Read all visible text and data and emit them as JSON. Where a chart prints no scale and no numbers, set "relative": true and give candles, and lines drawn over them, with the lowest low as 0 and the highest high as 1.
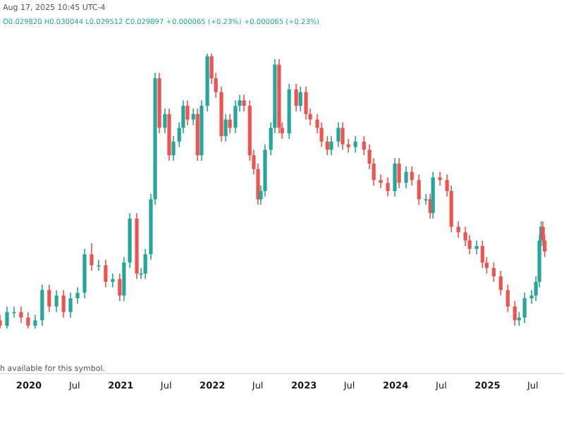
{
  "chart_data": {
    "type": "candlestick",
    "relative": true,
    "annotations": [
      "Aug 17, 2025 10:45 UTC-4",
      "O0.029820 H0.030044 L0.029512 C0.029897 +0.000065 (+0.23%) +0.000065 (+0.23%)",
      "h available for this symbol."
    ],
    "xlim": [
      "2019-09-08",
      "2025-11-02"
    ],
    "xticks": [
      {
        "value": "2020-01-01",
        "label": "2020"
      },
      {
        "value": "2020-07-01",
        "label": "Jul"
      },
      {
        "value": "2021-01-01",
        "label": "2021"
      },
      {
        "value": "2021-07-01",
        "label": "Jul"
      },
      {
        "value": "2022-01-01",
        "label": "2022"
      },
      {
        "value": "2022-07-01",
        "label": "Jul"
      },
      {
        "value": "2023-01-01",
        "label": "2023"
      },
      {
        "value": "2023-07-01",
        "label": "Jul"
      },
      {
        "value": "2024-01-01",
        "label": "2024"
      },
      {
        "value": "2024-07-01",
        "label": "Jul"
      },
      {
        "value": "2025-01-01",
        "label": "2025"
      },
      {
        "value": "2025-07-01",
        "label": "Jul"
      }
    ],
    "x": [
      "2019-09-08",
      "2019-10-06",
      "2019-11-03",
      "2019-12-01",
      "2019-12-29",
      "2020-01-26",
      "2020-02-23",
      "2020-03-22",
      "2020-04-20",
      "2020-05-18",
      "2020-06-15",
      "2020-07-13",
      "2020-08-10",
      "2020-09-07",
      "2020-10-05",
      "2020-11-02",
      "2020-11-30",
      "2020-12-28",
      "2021-01-14",
      "2021-02-06",
      "2021-03-06",
      "2021-03-23",
      "2021-04-09",
      "2021-05-01",
      "2021-05-18",
      "2021-06-04",
      "2021-06-26",
      "2021-07-13",
      "2021-07-30",
      "2021-08-22",
      "2021-09-07",
      "2021-09-24",
      "2021-10-17",
      "2021-11-03",
      "2021-11-19",
      "2021-12-12",
      "2021-12-29",
      "2022-01-15",
      "2022-02-06",
      "2022-02-23",
      "2022-03-12",
      "2022-04-03",
      "2022-04-20",
      "2022-05-07",
      "2022-05-30",
      "2022-06-15",
      "2022-07-02",
      "2022-07-13",
      "2022-07-30",
      "2022-08-22",
      "2022-09-07",
      "2022-09-24",
      "2022-10-06",
      "2022-11-03",
      "2022-12-01",
      "2022-12-18",
      "2023-01-09",
      "2023-01-26",
      "2023-02-23",
      "2023-03-12",
      "2023-04-04",
      "2023-04-20",
      "2023-05-18",
      "2023-06-04",
      "2023-06-27",
      "2023-07-25",
      "2023-08-28",
      "2023-09-19",
      "2023-10-06",
      "2023-11-03",
      "2023-12-01",
      "2023-12-29",
      "2024-01-15",
      "2024-02-12",
      "2024-03-06",
      "2024-04-03",
      "2024-05-01",
      "2024-05-18",
      "2024-05-29",
      "2024-06-26",
      "2024-07-24",
      "2024-08-10",
      "2024-09-07",
      "2024-10-05",
      "2024-10-22",
      "2024-11-19",
      "2024-12-12",
      "2024-12-29",
      "2025-01-26",
      "2025-02-23",
      "2025-03-23",
      "2025-04-20",
      "2025-05-07",
      "2025-05-29",
      "2025-06-26",
      "2025-07-13",
      "2025-07-27",
      "2025-08-03",
      "2025-08-10",
      "2025-08-17"
    ],
    "ohlc": [
      [
        0.03,
        0.05,
        0.0,
        0.01
      ],
      [
        0.01,
        0.08,
        0.0,
        0.06
      ],
      [
        0.06,
        0.08,
        0.04,
        0.06
      ],
      [
        0.06,
        0.08,
        0.02,
        0.04
      ],
      [
        0.04,
        0.06,
        0.0,
        0.01
      ],
      [
        0.01,
        0.05,
        0.0,
        0.03
      ],
      [
        0.03,
        0.16,
        0.01,
        0.14
      ],
      [
        0.14,
        0.16,
        0.06,
        0.08
      ],
      [
        0.08,
        0.14,
        0.06,
        0.12
      ],
      [
        0.12,
        0.14,
        0.04,
        0.06
      ],
      [
        0.06,
        0.13,
        0.04,
        0.11
      ],
      [
        0.11,
        0.15,
        0.09,
        0.13
      ],
      [
        0.13,
        0.29,
        0.11,
        0.27
      ],
      [
        0.27,
        0.31,
        0.21,
        0.23
      ],
      [
        0.23,
        0.25,
        0.21,
        0.23
      ],
      [
        0.23,
        0.25,
        0.15,
        0.17
      ],
      [
        0.17,
        0.2,
        0.15,
        0.18
      ],
      [
        0.18,
        0.2,
        0.1,
        0.12
      ],
      [
        0.12,
        0.26,
        0.1,
        0.24
      ],
      [
        0.24,
        0.42,
        0.22,
        0.4
      ],
      [
        0.4,
        0.42,
        0.18,
        0.2
      ],
      [
        0.2,
        0.22,
        0.18,
        0.2
      ],
      [
        0.2,
        0.29,
        0.18,
        0.27
      ],
      [
        0.27,
        0.49,
        0.25,
        0.47
      ],
      [
        0.47,
        0.93,
        0.45,
        0.91
      ],
      [
        0.91,
        0.93,
        0.71,
        0.73
      ],
      [
        0.73,
        0.8,
        0.71,
        0.78
      ],
      [
        0.78,
        0.8,
        0.61,
        0.63
      ],
      [
        0.63,
        0.7,
        0.61,
        0.68
      ],
      [
        0.68,
        0.75,
        0.66,
        0.73
      ],
      [
        0.73,
        0.83,
        0.71,
        0.81
      ],
      [
        0.81,
        0.83,
        0.74,
        0.76
      ],
      [
        0.76,
        0.8,
        0.74,
        0.78
      ],
      [
        0.78,
        0.8,
        0.61,
        0.63
      ],
      [
        0.63,
        0.83,
        0.61,
        0.81
      ],
      [
        0.81,
        1.0,
        0.79,
        0.99
      ],
      [
        0.99,
        1.0,
        0.89,
        0.91
      ],
      [
        0.91,
        0.93,
        0.84,
        0.86
      ],
      [
        0.86,
        0.88,
        0.68,
        0.7
      ],
      [
        0.7,
        0.78,
        0.68,
        0.76
      ],
      [
        0.76,
        0.78,
        0.71,
        0.73
      ],
      [
        0.73,
        0.83,
        0.71,
        0.81
      ],
      [
        0.81,
        0.85,
        0.79,
        0.83
      ],
      [
        0.83,
        0.85,
        0.79,
        0.81
      ],
      [
        0.81,
        0.83,
        0.61,
        0.63
      ],
      [
        0.63,
        0.65,
        0.56,
        0.58
      ],
      [
        0.58,
        0.6,
        0.45,
        0.47
      ],
      [
        0.47,
        0.52,
        0.45,
        0.5
      ],
      [
        0.5,
        0.67,
        0.48,
        0.65
      ],
      [
        0.65,
        0.75,
        0.63,
        0.73
      ],
      [
        0.73,
        0.98,
        0.71,
        0.96
      ],
      [
        0.96,
        0.98,
        0.71,
        0.73
      ],
      [
        0.73,
        0.75,
        0.69,
        0.71
      ],
      [
        0.71,
        0.89,
        0.69,
        0.87
      ],
      [
        0.87,
        0.89,
        0.79,
        0.81
      ],
      [
        0.81,
        0.88,
        0.79,
        0.86
      ],
      [
        0.86,
        0.88,
        0.76,
        0.78
      ],
      [
        0.78,
        0.8,
        0.74,
        0.76
      ],
      [
        0.76,
        0.78,
        0.71,
        0.73
      ],
      [
        0.73,
        0.75,
        0.66,
        0.68
      ],
      [
        0.68,
        0.7,
        0.63,
        0.65
      ],
      [
        0.65,
        0.7,
        0.63,
        0.68
      ],
      [
        0.68,
        0.75,
        0.66,
        0.73
      ],
      [
        0.73,
        0.75,
        0.65,
        0.67
      ],
      [
        0.67,
        0.69,
        0.64,
        0.66
      ],
      [
        0.66,
        0.7,
        0.64,
        0.68
      ],
      [
        0.68,
        0.7,
        0.63,
        0.65
      ],
      [
        0.65,
        0.67,
        0.58,
        0.6
      ],
      [
        0.6,
        0.62,
        0.52,
        0.54
      ],
      [
        0.54,
        0.56,
        0.51,
        0.53
      ],
      [
        0.53,
        0.55,
        0.48,
        0.5
      ],
      [
        0.5,
        0.62,
        0.48,
        0.6
      ],
      [
        0.6,
        0.62,
        0.51,
        0.53
      ],
      [
        0.53,
        0.59,
        0.51,
        0.57
      ],
      [
        0.57,
        0.59,
        0.52,
        0.54
      ],
      [
        0.54,
        0.56,
        0.45,
        0.47
      ],
      [
        0.47,
        0.49,
        0.45,
        0.47
      ],
      [
        0.47,
        0.49,
        0.4,
        0.42
      ],
      [
        0.42,
        0.57,
        0.4,
        0.55
      ],
      [
        0.55,
        0.57,
        0.52,
        0.54
      ],
      [
        0.54,
        0.56,
        0.48,
        0.5
      ],
      [
        0.5,
        0.52,
        0.35,
        0.37
      ],
      [
        0.37,
        0.39,
        0.33,
        0.35
      ],
      [
        0.35,
        0.37,
        0.3,
        0.32
      ],
      [
        0.32,
        0.34,
        0.27,
        0.29
      ],
      [
        0.29,
        0.32,
        0.27,
        0.3
      ],
      [
        0.3,
        0.32,
        0.22,
        0.24
      ],
      [
        0.24,
        0.26,
        0.2,
        0.22
      ],
      [
        0.22,
        0.24,
        0.17,
        0.19
      ],
      [
        0.19,
        0.21,
        0.12,
        0.14
      ],
      [
        0.14,
        0.16,
        0.06,
        0.08
      ],
      [
        0.08,
        0.1,
        0.01,
        0.03
      ],
      [
        0.03,
        0.06,
        0.01,
        0.04
      ],
      [
        0.04,
        0.13,
        0.02,
        0.11
      ],
      [
        0.11,
        0.14,
        0.09,
        0.12
      ],
      [
        0.12,
        0.19,
        0.1,
        0.17
      ],
      [
        0.17,
        0.34,
        0.15,
        0.32
      ],
      [
        0.32,
        0.39,
        0.3,
        0.37
      ],
      [
        0.37,
        0.39,
        0.3,
        0.32
      ],
      [
        0.32,
        0.34,
        0.26,
        0.28
      ]
    ]
  }
}
